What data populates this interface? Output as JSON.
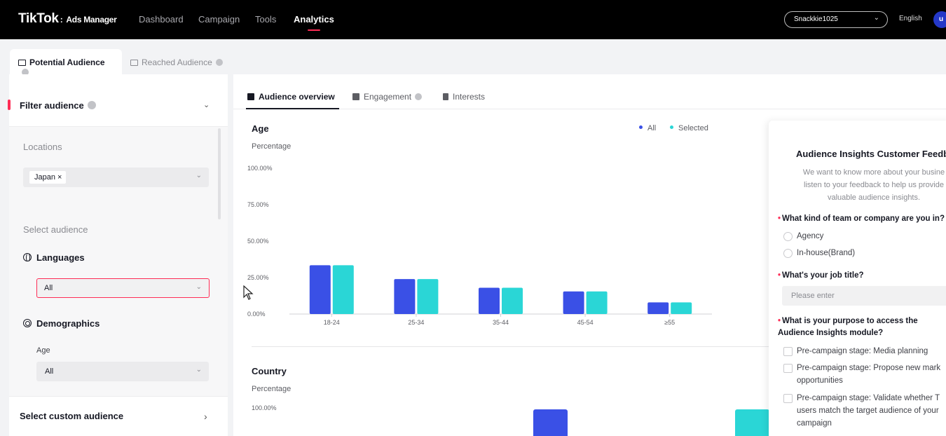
{
  "header": {
    "brand": "TikTok",
    "brand_sub": "Ads Manager",
    "nav": [
      "Dashboard",
      "Campaign",
      "Tools",
      "Analytics"
    ],
    "active_nav": "Analytics",
    "account": "Snackkie1025",
    "language": "English",
    "avatar_letter": "u"
  },
  "audience_tabs": [
    "Potential Audience",
    "Reached Audience"
  ],
  "filter": {
    "title": "Filter audience",
    "locations_label": "Locations",
    "location_value": "Japan",
    "select_audience_label": "Select audience",
    "languages_label": "Languages",
    "languages_value": "All",
    "demographics_label": "Demographics",
    "age_label": "Age",
    "age_value": "All",
    "custom_audience_label": "Select custom audience"
  },
  "content_tabs": [
    "Audience overview",
    "Engagement",
    "Interests"
  ],
  "age_card": {
    "title": "Age",
    "ylabel": "Percentage",
    "legend": [
      "All",
      "Selected"
    ]
  },
  "country_card": {
    "title": "Country",
    "ylabel": "Percentage",
    "top_tick": "100.00%"
  },
  "colors": {
    "all": "#3a50e6",
    "selected": "#2ad6d6",
    "accent": "#fe2c55"
  },
  "chart_data": {
    "type": "bar",
    "title": "Age",
    "ylabel": "Percentage",
    "categories": [
      "18-24",
      "25-34",
      "35-44",
      "45-54",
      "≥55"
    ],
    "yticks": [
      "100.00%",
      "75.00%",
      "50.00%",
      "25.00%",
      "0.00%"
    ],
    "ylim": [
      0,
      100
    ],
    "series": [
      {
        "name": "All",
        "values": [
          33.5,
          24,
          18,
          15.5,
          8
        ]
      },
      {
        "name": "Selected",
        "values": [
          33.5,
          24,
          18,
          15.5,
          8
        ]
      }
    ],
    "legend_position": "top-right"
  },
  "feedback": {
    "title": "Audience Insights Customer Feedb",
    "desc_lines": [
      "We want to know more about your busine",
      "listen to your feedback to help us provide",
      "valuable audience insights."
    ],
    "q1": "What kind of team or company are you in?",
    "q1_options": [
      "Agency",
      "In-house(Brand)"
    ],
    "q2": "What's your job title?",
    "q2_placeholder": "Please enter",
    "q3": "What is your purpose to access the Audience Insights module?",
    "q3_options": [
      "Pre-campaign stage: Media planning",
      "Pre-campaign stage: Propose new mark opportunities",
      "Pre-campaign stage: Validate whether T users match the target audience of your campaign"
    ]
  }
}
